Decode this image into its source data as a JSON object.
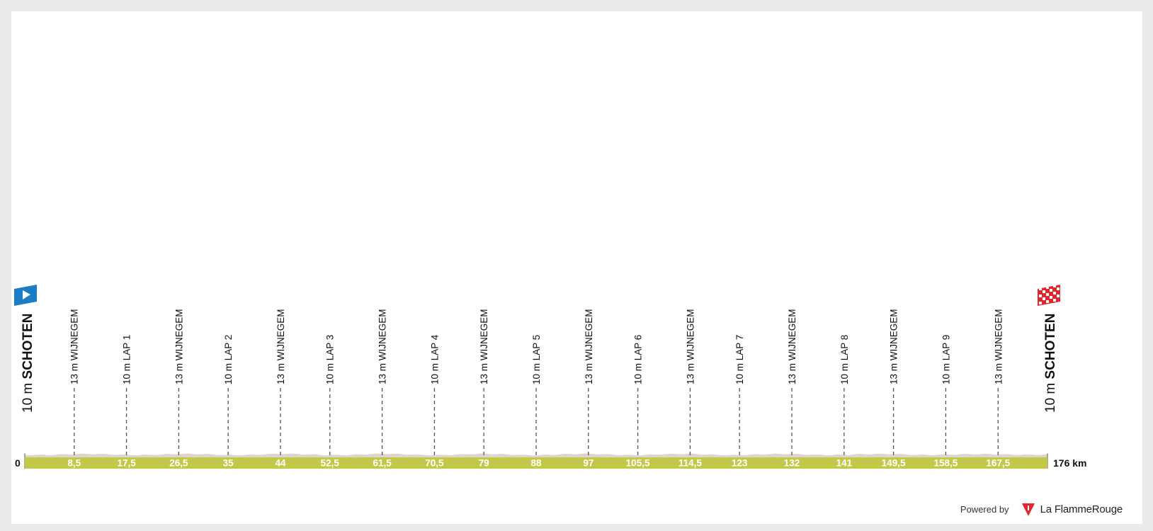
{
  "chart_data": {
    "type": "area",
    "title": "",
    "xlabel": "",
    "ylabel": "",
    "total_distance_km": 176,
    "xlim": [
      0,
      176
    ],
    "ylim": [
      0,
      250
    ],
    "x_start_label": "0",
    "x_end_label": "176 km",
    "start": {
      "altitude_label": "10 m",
      "name": "SCHOTEN",
      "altitude_m": 10
    },
    "finish": {
      "altitude_label": "10 m",
      "name": "SCHOTEN",
      "altitude_m": 10
    },
    "waypoints": [
      {
        "km": 8.5,
        "km_label": "8,5",
        "altitude_label": "13 m",
        "name": "WIJNEGEM",
        "altitude_m": 13
      },
      {
        "km": 17.5,
        "km_label": "17,5",
        "altitude_label": "10 m",
        "name": "LAP 1",
        "altitude_m": 10
      },
      {
        "km": 26.5,
        "km_label": "26,5",
        "altitude_label": "13 m",
        "name": "WIJNEGEM",
        "altitude_m": 13
      },
      {
        "km": 35,
        "km_label": "35",
        "altitude_label": "10 m",
        "name": "LAP 2",
        "altitude_m": 10
      },
      {
        "km": 44,
        "km_label": "44",
        "altitude_label": "13 m",
        "name": "WIJNEGEM",
        "altitude_m": 13
      },
      {
        "km": 52.5,
        "km_label": "52,5",
        "altitude_label": "10 m",
        "name": "LAP 3",
        "altitude_m": 10
      },
      {
        "km": 61.5,
        "km_label": "61,5",
        "altitude_label": "13 m",
        "name": "WIJNEGEM",
        "altitude_m": 13
      },
      {
        "km": 70.5,
        "km_label": "70,5",
        "altitude_label": "10 m",
        "name": "LAP 4",
        "altitude_m": 10
      },
      {
        "km": 79,
        "km_label": "79",
        "altitude_label": "13 m",
        "name": "WIJNEGEM",
        "altitude_m": 13
      },
      {
        "km": 88,
        "km_label": "88",
        "altitude_label": "10 m",
        "name": "LAP 5",
        "altitude_m": 10
      },
      {
        "km": 97,
        "km_label": "97",
        "altitude_label": "13 m",
        "name": "WIJNEGEM",
        "altitude_m": 13
      },
      {
        "km": 105.5,
        "km_label": "105,5",
        "altitude_label": "10 m",
        "name": "LAP 6",
        "altitude_m": 10
      },
      {
        "km": 114.5,
        "km_label": "114,5",
        "altitude_label": "13 m",
        "name": "WIJNEGEM",
        "altitude_m": 13
      },
      {
        "km": 123,
        "km_label": "123",
        "altitude_label": "10 m",
        "name": "LAP 7",
        "altitude_m": 10
      },
      {
        "km": 132,
        "km_label": "132",
        "altitude_label": "13 m",
        "name": "WIJNEGEM",
        "altitude_m": 13
      },
      {
        "km": 141,
        "km_label": "141",
        "altitude_label": "10 m",
        "name": "LAP 8",
        "altitude_m": 10
      },
      {
        "km": 149.5,
        "km_label": "149,5",
        "altitude_label": "13 m",
        "name": "WIJNEGEM",
        "altitude_m": 13
      },
      {
        "km": 158.5,
        "km_label": "158,5",
        "altitude_label": "10 m",
        "name": "LAP 9",
        "altitude_m": 10
      },
      {
        "km": 167.5,
        "km_label": "167,5",
        "altitude_label": "13 m",
        "name": "WIJNEGEM",
        "altitude_m": 13
      }
    ],
    "colors": {
      "profile_fill": "#ded6cc",
      "profile_top": "#cfc7bc",
      "km_band": "#c4c848",
      "start_flag": "#1c7cc4",
      "finish_flag": "#e1262d",
      "marker_line": "#555555"
    }
  },
  "footer": {
    "powered_by": "Powered by",
    "brand": "La FlammeRouge",
    "brand_icon": "flamme-rouge-logo-icon",
    "brand_color": "#e1262d"
  }
}
